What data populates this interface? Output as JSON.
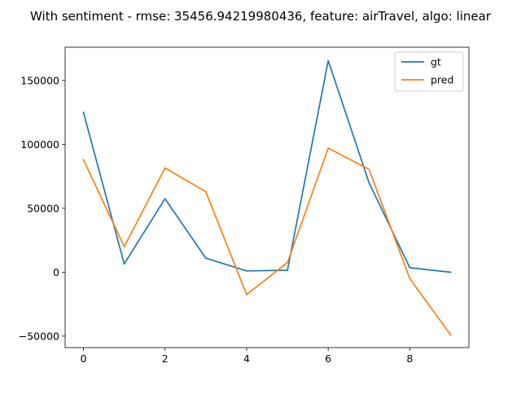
{
  "chart_data": {
    "type": "line",
    "title": "With sentiment - rmse: 35456.94219980436, feature: airTravel, algo: linear",
    "xlabel": "",
    "ylabel": "",
    "x": [
      0,
      1,
      2,
      3,
      4,
      5,
      6,
      7,
      8,
      9
    ],
    "xlim": [
      -0.45,
      9.45
    ],
    "ylim": [
      -59000,
      176000
    ],
    "xticks": [
      0,
      2,
      4,
      6,
      8
    ],
    "yticks": [
      -50000,
      0,
      50000,
      100000,
      150000
    ],
    "grid": false,
    "legend_position": "top-right",
    "series": [
      {
        "name": "gt",
        "color": "#1f77b4",
        "values": [
          125000,
          6500,
          57500,
          11000,
          1000,
          1500,
          165500,
          70000,
          3500,
          0
        ]
      },
      {
        "name": "pred",
        "color": "#ff7f0e",
        "values": [
          88000,
          20000,
          81500,
          63000,
          -17500,
          7500,
          97000,
          80500,
          -5000,
          -49000
        ]
      }
    ]
  }
}
